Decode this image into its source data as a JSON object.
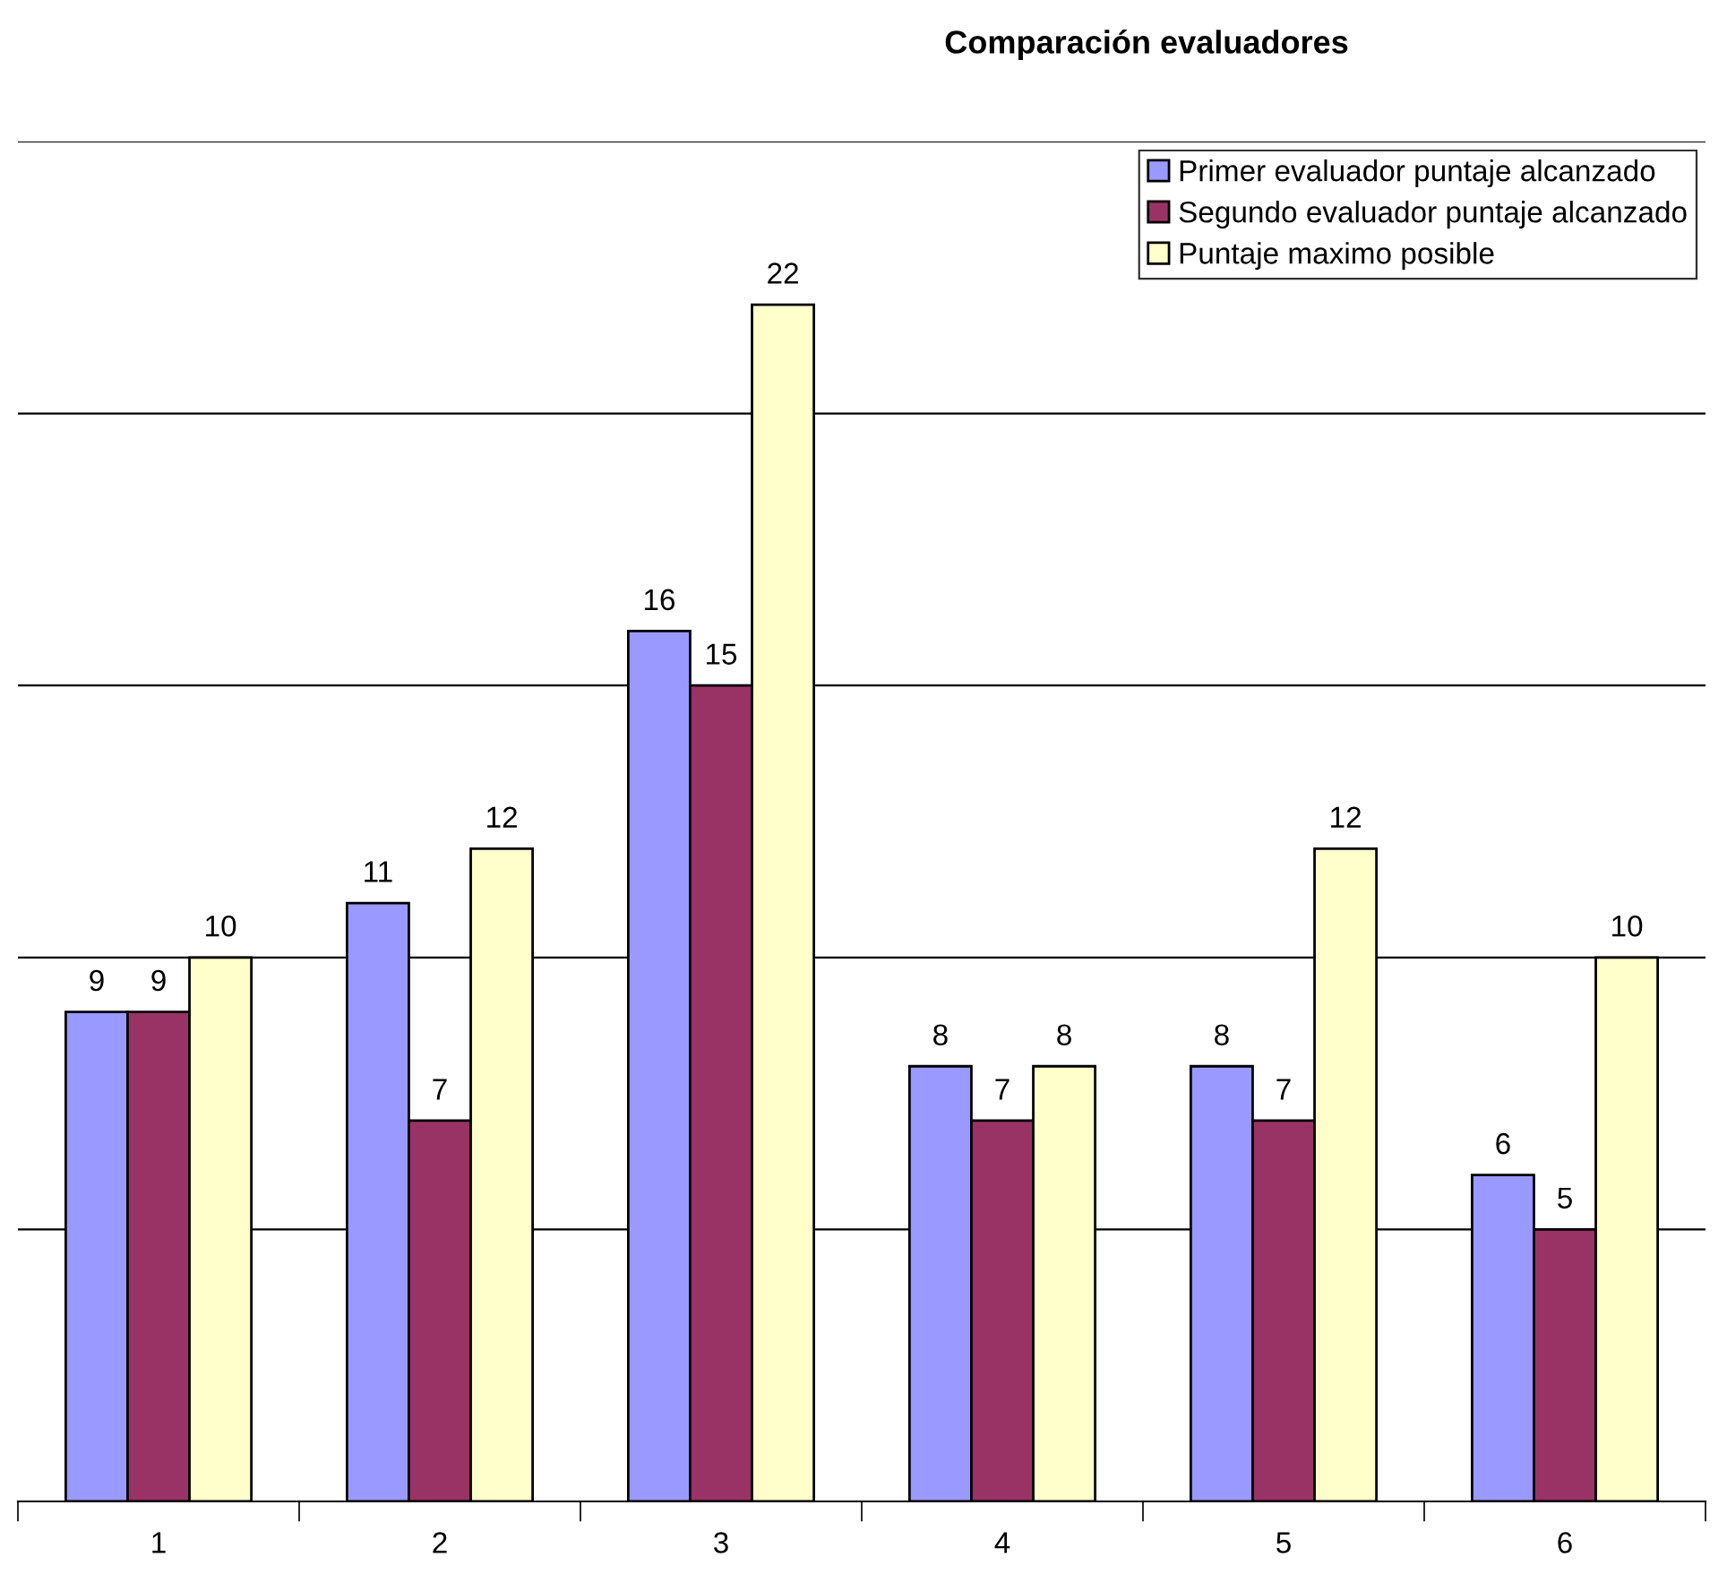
{
  "chart_data": {
    "type": "bar",
    "title": "Comparación evaluadores",
    "categories": [
      "1",
      "2",
      "3",
      "4",
      "5",
      "6"
    ],
    "series": [
      {
        "name": "Primer evaluador puntaje alcanzado",
        "color": "#9999ff",
        "values": [
          9,
          11,
          16,
          8,
          8,
          6
        ]
      },
      {
        "name": "Segundo evaluador puntaje alcanzado",
        "color": "#993366",
        "values": [
          9,
          7,
          15,
          7,
          7,
          5
        ]
      },
      {
        "name": "Puntaje maximo posible",
        "color": "#ffffcc",
        "values": [
          10,
          12,
          22,
          8,
          12,
          10
        ]
      }
    ],
    "ylim": [
      0,
      25
    ],
    "yticks": [
      {
        "value": 0,
        "label": null
      },
      {
        "value": 5,
        "label": null
      },
      {
        "value": 10,
        "label": null
      },
      {
        "value": 15,
        "label": null
      },
      {
        "value": 20,
        "label": null
      },
      {
        "value": 25,
        "label": null
      }
    ],
    "grid": "y",
    "legend": "top right",
    "data_labels": true,
    "tick_labels": "x"
  }
}
